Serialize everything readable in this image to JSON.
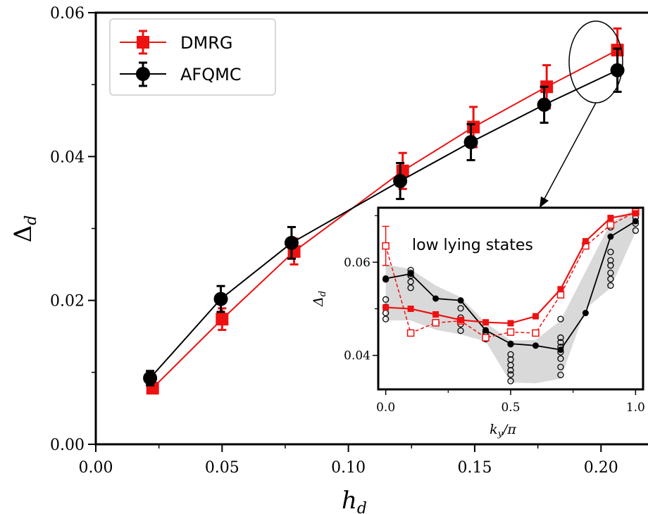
{
  "chart_data": [
    {
      "type": "line",
      "xlabel_main": "h",
      "xlabel_sub": "d",
      "ylabel_main": "Δ",
      "ylabel_sub": "d",
      "xlim": [
        0.0,
        0.22
      ],
      "ylim": [
        0.0,
        0.06
      ],
      "xticks": [
        "0.00",
        "0.05",
        "0.10",
        "0.15",
        "0.20"
      ],
      "yticks": [
        "0.00",
        "0.02",
        "0.04",
        "0.06"
      ],
      "xtick_values": [
        0.0,
        0.05,
        0.1,
        0.15,
        0.2
      ],
      "ytick_values": [
        0.0,
        0.02,
        0.04,
        0.06
      ],
      "legend_position": "top-left",
      "series": [
        {
          "name": "DMRG",
          "color": "#ee1111",
          "marker": "square",
          "x": [
            0.0225,
            0.05,
            0.0785,
            0.1215,
            0.1495,
            0.1785,
            0.2065
          ],
          "y": [
            0.0078,
            0.0174,
            0.0268,
            0.038,
            0.0441,
            0.0497,
            0.0548
          ],
          "err": [
            0.0005,
            0.0015,
            0.0018,
            0.0025,
            0.0028,
            0.003,
            0.003
          ]
        },
        {
          "name": "AFQMC",
          "color": "#000000",
          "marker": "circle",
          "x": [
            0.0215,
            0.0495,
            0.0775,
            0.1205,
            0.1485,
            0.1775,
            0.2065
          ],
          "y": [
            0.0092,
            0.0202,
            0.028,
            0.0366,
            0.042,
            0.0472,
            0.052
          ],
          "err": [
            0.001,
            0.0018,
            0.0022,
            0.0025,
            0.0025,
            0.0025,
            0.003
          ]
        }
      ]
    },
    {
      "type": "line",
      "xlabel_main": "k",
      "xlabel_sub": "y",
      "xlabel_tail": "/π",
      "ylabel_main": "Δ",
      "ylabel_sub": "d",
      "annotation": "low lying states",
      "xlim": [
        -0.03,
        1.03
      ],
      "ylim": [
        0.0327,
        0.0717
      ],
      "xticks": [
        "0.0",
        "0.5",
        "1.0"
      ],
      "yticks": [
        "0.04",
        "0.06"
      ],
      "xtick_values": [
        0.0,
        0.5,
        1.0
      ],
      "ytick_values": [
        0.04,
        0.06
      ],
      "series": [
        {
          "color": "#ee1111",
          "marker": "filled-square",
          "x": [
            0.0,
            0.1,
            0.2,
            0.3,
            0.4,
            0.5,
            0.6,
            0.7,
            0.8,
            0.9,
            1.0
          ],
          "y": [
            0.0503,
            0.05,
            0.0488,
            0.0476,
            0.0471,
            0.0469,
            0.0484,
            0.0542,
            0.0645,
            0.0695,
            0.0705
          ]
        },
        {
          "color": "#ee1111",
          "marker": "open-square-dashed",
          "x": [
            0.0,
            0.1,
            0.2,
            0.3,
            0.4,
            0.5,
            0.6,
            0.7,
            0.8,
            0.9,
            1.0
          ],
          "y": [
            0.0635,
            0.0448,
            0.047,
            0.0474,
            0.0438,
            0.045,
            0.0448,
            0.053,
            0.0635,
            0.068,
            0.0708
          ],
          "err": [
            0.0042,
            0,
            0,
            0,
            0,
            0,
            0,
            0,
            0,
            0,
            0
          ]
        },
        {
          "color": "#000000",
          "marker": "filled-circle",
          "x": [
            0.0,
            0.1,
            0.2,
            0.3,
            0.4,
            0.5,
            0.6,
            0.7,
            0.8,
            0.9,
            1.0
          ],
          "y": [
            0.0565,
            0.0575,
            0.0522,
            0.0518,
            0.0454,
            0.0425,
            0.0421,
            0.0412,
            0.0491,
            0.0655,
            0.0688
          ]
        }
      ],
      "open_circles": {
        "x": [
          0,
          0,
          0,
          0,
          0,
          0.1,
          0.1,
          0.1,
          0.1,
          0.1,
          0.3,
          0.3,
          0.3,
          0.3,
          0.4,
          0.4,
          0.4,
          0.5,
          0.5,
          0.5,
          0.5,
          0.5,
          0.5,
          0.5,
          0.7,
          0.7,
          0.7,
          0.7,
          0.7,
          0.7,
          0.7,
          0.7,
          0.9,
          0.9,
          0.9,
          0.9,
          0.9,
          0.9,
          0.9,
          1.0,
          1.0,
          1.0
        ],
        "y": [
          0.0478,
          0.0491,
          0.0504,
          0.052,
          0.0563,
          0.0545,
          0.0558,
          0.0571,
          0.0577,
          0.0583,
          0.0453,
          0.0467,
          0.0481,
          0.0501,
          0.0435,
          0.0443,
          0.045,
          0.0345,
          0.0359,
          0.0368,
          0.0379,
          0.0391,
          0.0402,
          0.0424,
          0.0358,
          0.0375,
          0.0393,
          0.0407,
          0.0418,
          0.0428,
          0.0438,
          0.0478,
          0.055,
          0.0564,
          0.0577,
          0.0593,
          0.0604,
          0.0622,
          0.0675,
          0.0668,
          0.0683,
          0.0696
        ]
      },
      "band": {
        "x": [
          0.0,
          0.1,
          0.2,
          0.3,
          0.4,
          0.5,
          0.6,
          0.7,
          0.8,
          0.9,
          1.0
        ],
        "upper": [
          0.0595,
          0.0585,
          0.055,
          0.0525,
          0.047,
          0.0432,
          0.0433,
          0.0475,
          0.058,
          0.0685,
          0.0715
        ],
        "lower": [
          0.0475,
          0.0475,
          0.0455,
          0.0445,
          0.043,
          0.0342,
          0.034,
          0.035,
          0.05,
          0.0545,
          0.0665
        ]
      }
    }
  ]
}
